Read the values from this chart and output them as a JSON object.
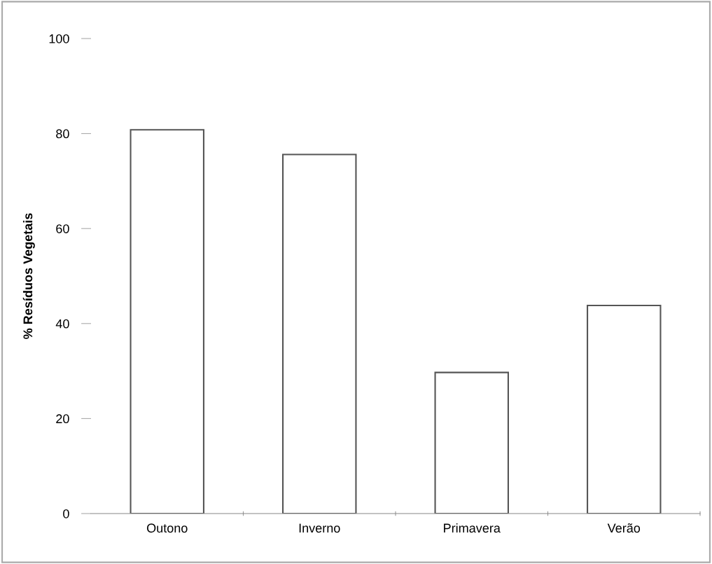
{
  "chart_data": {
    "type": "bar",
    "ylabel": "% Resíduos Vegetais",
    "categories": [
      "Outono",
      "Inverno",
      "Primavera",
      "Verão"
    ],
    "values": [
      80.8,
      75.6,
      29.7,
      43.8
    ],
    "color": "#ffffff",
    "ylim": [
      0,
      100
    ],
    "yticks": [
      0,
      20,
      40,
      60,
      80,
      100
    ],
    "grid": false
  }
}
